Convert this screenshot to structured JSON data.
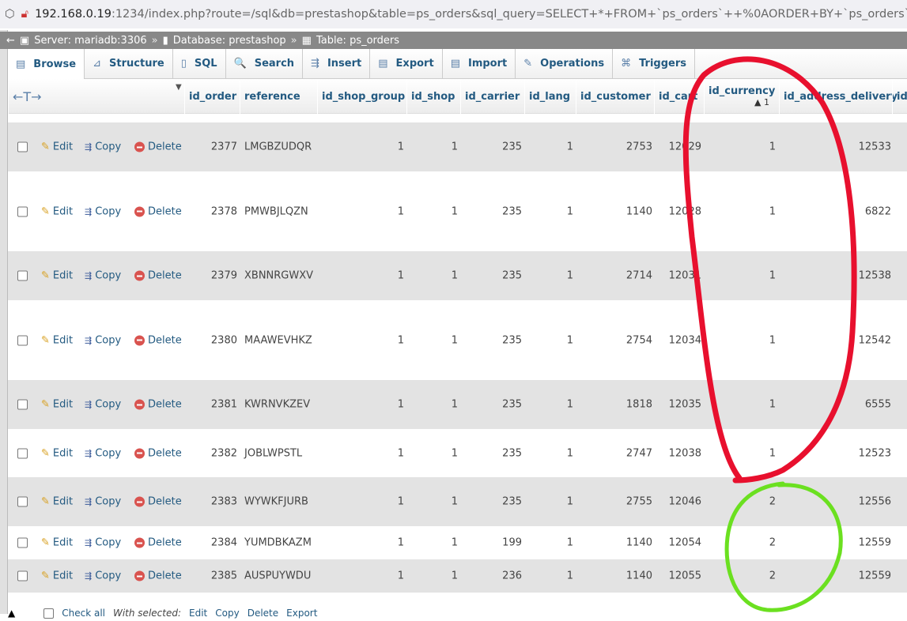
{
  "browser": {
    "url_host": "192.168.0.19",
    "url_rest": ":1234/index.php?route=/sql&db=prestashop&table=ps_orders&sql_query=SELECT+*+FROM+`ps_orders`++%0AORDER+BY+`ps_orders`.`id_curre"
  },
  "breadcrumb": {
    "server": "Server: mariadb:3306",
    "database": "Database: prestashop",
    "table": "Table: ps_orders",
    "sep": "»"
  },
  "tabs": [
    {
      "label": "Browse",
      "icon": "▤"
    },
    {
      "label": "Structure",
      "icon": "⊿"
    },
    {
      "label": "SQL",
      "icon": "▯"
    },
    {
      "label": "Search",
      "icon": "🔍"
    },
    {
      "label": "Insert",
      "icon": "⇶"
    },
    {
      "label": "Export",
      "icon": "▤"
    },
    {
      "label": "Import",
      "icon": "▤"
    },
    {
      "label": "Operations",
      "icon": "✎"
    },
    {
      "label": "Triggers",
      "icon": "⌘"
    }
  ],
  "table": {
    "resize_control": "←T→",
    "columns": [
      "id_order",
      "reference",
      "id_shop_group",
      "id_shop",
      "id_carrier",
      "id_lang",
      "id_customer",
      "id_cart",
      "id_currency",
      "id_address_delivery",
      "id"
    ],
    "sort_indicator": "▲ 1",
    "actions": {
      "edit": "Edit",
      "copy": "Copy",
      "delete": "Delete"
    },
    "rows": [
      [
        "2377",
        "LMGBZUDQR",
        "1",
        "1",
        "235",
        "1",
        "2753",
        "12029",
        "1",
        "12533"
      ],
      [
        "2378",
        "PMWBJLQZN",
        "1",
        "1",
        "235",
        "1",
        "1140",
        "12028",
        "1",
        "6822"
      ],
      [
        "2379",
        "XBNNRGWXV",
        "1",
        "1",
        "235",
        "1",
        "2714",
        "12031",
        "1",
        "12538"
      ],
      [
        "2380",
        "MAAWEVHKZ",
        "1",
        "1",
        "235",
        "1",
        "2754",
        "12034",
        "1",
        "12542"
      ],
      [
        "2381",
        "KWRNVKZEV",
        "1",
        "1",
        "235",
        "1",
        "1818",
        "12035",
        "1",
        "6555"
      ],
      [
        "2382",
        "JOBLWPSTL",
        "1",
        "1",
        "235",
        "1",
        "2747",
        "12038",
        "1",
        "12523"
      ],
      [
        "2383",
        "WYWKFJURB",
        "1",
        "1",
        "235",
        "1",
        "2755",
        "12046",
        "2",
        "12556"
      ],
      [
        "2384",
        "YUMDBKAZM",
        "1",
        "1",
        "199",
        "1",
        "1140",
        "12054",
        "2",
        "12559"
      ],
      [
        "2385",
        "AUSPUYWDU",
        "1",
        "1",
        "236",
        "1",
        "1140",
        "12055",
        "2",
        "12559"
      ]
    ]
  },
  "footer": {
    "check_all": "Check all",
    "with_selected": "With selected:",
    "edit": "Edit",
    "copy": "Copy",
    "delete": "Delete",
    "export": "Export"
  },
  "annotations": {
    "red": "#e8102e",
    "green": "#6be020"
  }
}
